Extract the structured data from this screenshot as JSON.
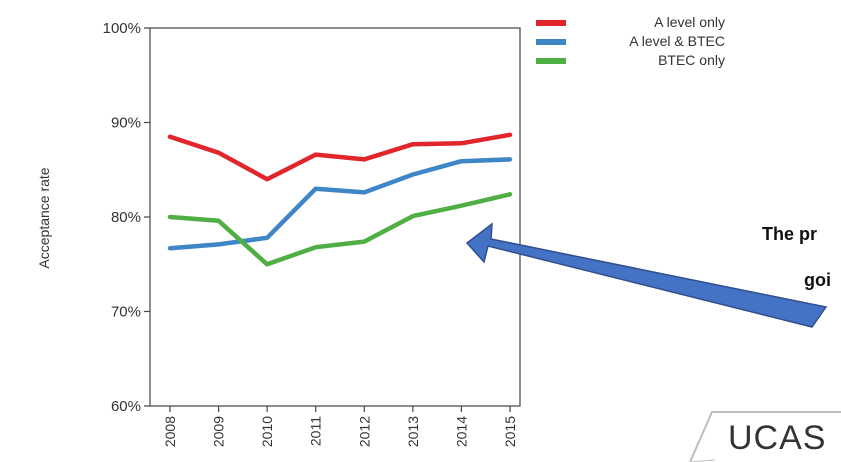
{
  "chart_data": {
    "type": "line",
    "title": "",
    "xlabel": "",
    "ylabel": "Acceptance rate",
    "x": [
      "2008",
      "2009",
      "2010",
      "2011",
      "2012",
      "2013",
      "2014",
      "2015"
    ],
    "ylim": [
      60,
      100
    ],
    "yticks": [
      "60%",
      "70%",
      "80%",
      "90%",
      "100%"
    ],
    "grid": false,
    "legend_position": "top-right",
    "series": [
      {
        "name": "A level only",
        "color": "#e0252b",
        "values": [
          88.5,
          86.8,
          84.0,
          86.6,
          86.1,
          87.7,
          87.8,
          88.7
        ]
      },
      {
        "name": "A level & BTEC",
        "color": "#3f86c6",
        "values": [
          76.7,
          77.1,
          77.8,
          83.0,
          82.6,
          84.5,
          85.9,
          86.1
        ]
      },
      {
        "name": "BTEC only",
        "color": "#4fae44",
        "values": [
          80.0,
          79.6,
          75.0,
          76.8,
          77.4,
          80.1,
          81.2,
          82.4
        ]
      }
    ]
  },
  "annotation": {
    "line1": "The pr",
    "line2": "goi",
    "arrow_color": "#4472c4",
    "arrow_border": "#2f4f8f"
  },
  "logo": {
    "text": "UCAS"
  }
}
